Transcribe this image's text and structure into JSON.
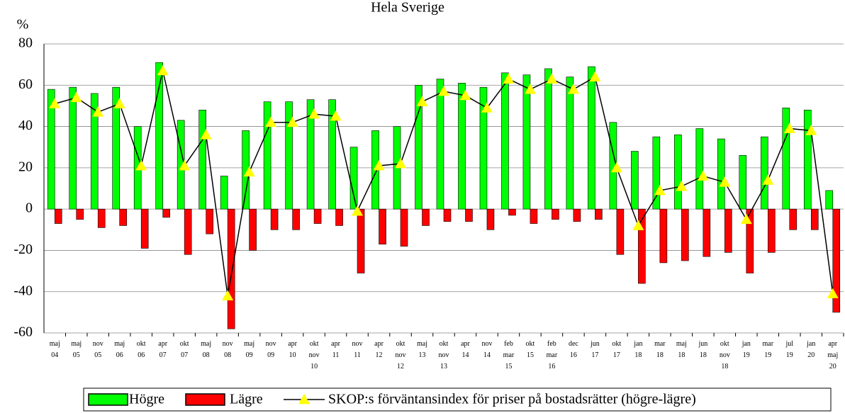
{
  "chart_data": {
    "type": "bar_line",
    "title": "Hela Sverige",
    "y_label": "%",
    "categories": [
      "maj\n04",
      "maj\n05",
      "nov\n05",
      "maj\n06",
      "okt\n06",
      "apr\n07",
      "okt\n07",
      "maj\n08",
      "nov\n08",
      "maj\n09",
      "nov\n09",
      "apr\n10",
      "okt\nnov\n10",
      "apr\n11",
      "nov\n11",
      "apr\n12",
      "okt\nnov\n12",
      "maj\n13",
      "okt\nnov\n13",
      "apr\n14",
      "nov\n14",
      "feb\nmar\n15",
      "okt\n15",
      "feb\nmar\n16",
      "dec\n16",
      "jun\n17",
      "okt\n17",
      "jan\n18",
      "mar\n18",
      "maj\n18",
      "jun\n18",
      "okt\nnov\n18",
      "jan\n19",
      "mar\n19",
      "jul\n19",
      "jan\n20",
      "apr\nmaj\n20"
    ],
    "series": [
      {
        "name": "Högre",
        "kind": "bar",
        "color": "#00ff00",
        "values": [
          58,
          59,
          56,
          59,
          40,
          71,
          43,
          48,
          16,
          38,
          52,
          52,
          53,
          53,
          30,
          38,
          40,
          60,
          63,
          61,
          59,
          66,
          65,
          68,
          64,
          69,
          42,
          28,
          35,
          36,
          39,
          34,
          26,
          35,
          49,
          48,
          9
        ]
      },
      {
        "name": "Lägre",
        "kind": "bar",
        "color": "#ff0000",
        "values": [
          -7,
          -5,
          -9,
          -8,
          -19,
          -4,
          -22,
          -12,
          -58,
          -20,
          -10,
          -10,
          -7,
          -8,
          -31,
          -17,
          -18,
          -8,
          -6,
          -6,
          -10,
          -3,
          -7,
          -5,
          -6,
          -5,
          -22,
          -36,
          -26,
          -25,
          -23,
          -21,
          -31,
          -21,
          -10,
          -10,
          -50
        ]
      },
      {
        "name": "SKOP:s förväntansindex för priser på bostadsrätter (högre-lägre)",
        "kind": "line",
        "color": "#000000",
        "marker_color": "#ffff00",
        "values": [
          51,
          54,
          47,
          51,
          21,
          67,
          21,
          36,
          -42,
          18,
          42,
          42,
          46,
          45,
          -1,
          21,
          22,
          52,
          57,
          55,
          49,
          63,
          58,
          63,
          58,
          64,
          20,
          -8,
          9,
          11,
          16,
          13,
          -5,
          14,
          39,
          38,
          -41
        ]
      }
    ],
    "ylim": [
      -60,
      80
    ],
    "yticks": [
      -60,
      -40,
      -20,
      0,
      20,
      40,
      60,
      80
    ],
    "grid": true
  }
}
